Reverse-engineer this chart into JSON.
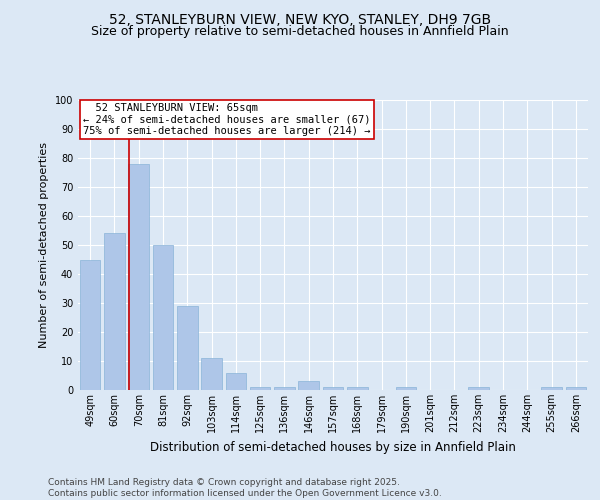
{
  "title": "52, STANLEYBURN VIEW, NEW KYO, STANLEY, DH9 7GB",
  "subtitle": "Size of property relative to semi-detached houses in Annfield Plain",
  "xlabel": "Distribution of semi-detached houses by size in Annfield Plain",
  "ylabel": "Number of semi-detached properties",
  "categories": [
    "49sqm",
    "60sqm",
    "70sqm",
    "81sqm",
    "92sqm",
    "103sqm",
    "114sqm",
    "125sqm",
    "136sqm",
    "146sqm",
    "157sqm",
    "168sqm",
    "179sqm",
    "190sqm",
    "201sqm",
    "212sqm",
    "223sqm",
    "234sqm",
    "244sqm",
    "255sqm",
    "266sqm"
  ],
  "values": [
    45,
    54,
    78,
    50,
    29,
    11,
    6,
    1,
    1,
    3,
    1,
    1,
    0,
    1,
    0,
    0,
    1,
    0,
    0,
    1,
    1
  ],
  "bar_color": "#aec6e8",
  "bar_edge_color": "#8ab4d8",
  "background_color": "#dce8f5",
  "grid_color": "#ffffff",
  "property_label": "52 STANLEYBURN VIEW: 65sqm",
  "pct_smaller": 24,
  "count_smaller": 67,
  "pct_larger": 75,
  "count_larger": 214,
  "annotation_box_color": "#ffffff",
  "annotation_box_edge": "#cc0000",
  "line_color": "#cc0000",
  "line_x_index": 1.62,
  "ylim": [
    0,
    100
  ],
  "yticks": [
    0,
    10,
    20,
    30,
    40,
    50,
    60,
    70,
    80,
    90,
    100
  ],
  "footnote": "Contains HM Land Registry data © Crown copyright and database right 2025.\nContains public sector information licensed under the Open Government Licence v3.0.",
  "title_fontsize": 10,
  "subtitle_fontsize": 9,
  "xlabel_fontsize": 8.5,
  "ylabel_fontsize": 8,
  "tick_fontsize": 7,
  "annotation_fontsize": 7.5,
  "footnote_fontsize": 6.5
}
